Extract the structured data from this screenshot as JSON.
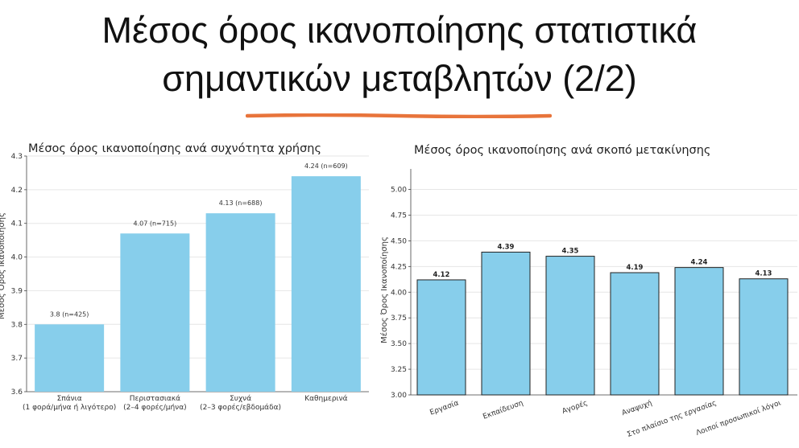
{
  "slide": {
    "title_line1": "Μέσος όρος ικανοποίησης στατιστικά",
    "title_line2": "σημαντικών μεταβλητών (2/2)",
    "accent_color": "#E8743B"
  },
  "chart_data": [
    {
      "type": "bar",
      "title": "Μέσος όρος ικανοποίησης ανά συχνότητα χρήσης",
      "xlabel": "",
      "ylabel": "Μέσος Όρος Ικανοποίησης",
      "categories": [
        [
          "Σπάνια",
          "(1 φορά/μήνα ή λιγότερο)"
        ],
        [
          "Περιστασιακά",
          "(2–4 φορές/μήνα)"
        ],
        [
          "Συχνά",
          "(2–3 φορές/εβδομάδα)"
        ],
        [
          "Καθημερινά"
        ]
      ],
      "values": [
        3.8,
        4.07,
        4.13,
        4.24
      ],
      "data_labels": [
        "3.8 (n=425)",
        "4.07 (n=715)",
        "4.13 (n=688)",
        "4.24 (n=609)"
      ],
      "ylim": [
        3.6,
        4.3
      ],
      "yticks": [
        "3.6",
        "3.7",
        "3.8",
        "3.9",
        "4.0",
        "4.1",
        "4.2",
        "4.3"
      ],
      "grid": true,
      "bar_color": "#87CEEB",
      "bar_edge": "none"
    },
    {
      "type": "bar",
      "title": "Μέσος όρος ικανοποίησης ανά σκοπό μετακίνησης",
      "xlabel": "",
      "ylabel": "Μέσος Όρος Ικανοποίησης",
      "categories": [
        "Εργασία",
        "Εκπαίδευση",
        "Αγορές",
        "Αναψυχή",
        "Στο πλαίσιο της εργασίας",
        "Λοιποί προσωπικοί λόγοι"
      ],
      "values": [
        4.12,
        4.39,
        4.35,
        4.19,
        4.24,
        4.13
      ],
      "data_labels": [
        "4.12",
        "4.39",
        "4.35",
        "4.19",
        "4.24",
        "4.13"
      ],
      "ylim": [
        3.0,
        5.2
      ],
      "yticks": [
        "3.00",
        "3.25",
        "3.50",
        "3.75",
        "4.00",
        "4.25",
        "4.50",
        "4.75",
        "5.00"
      ],
      "grid": true,
      "bar_color": "#87CEEB",
      "bar_edge": "#222222"
    }
  ]
}
